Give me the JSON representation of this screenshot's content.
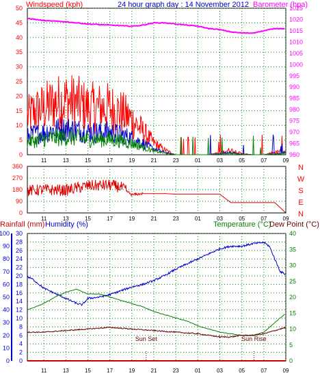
{
  "header": {
    "title": "24 hour graph day : 14 November 2012",
    "windspeed_label": "Windspeed (kph)",
    "barometer_label": "Barometer (hpa)"
  },
  "bottom_header": {
    "rainfall_label": "Rainfall (mm)",
    "humidity_label": "Humidity (%)",
    "temperature_label": "Temperature (°C)",
    "dewpoint_label": "Dew Point (°C)"
  },
  "colors": {
    "windspeed": "#ff0000",
    "wind_avg": "#0000cc",
    "wind_low": "#008000",
    "barometer": "#ff00ff",
    "direction": "#dd0000",
    "humidity": "#0000cc",
    "temperature": "#008000",
    "dewpoint": "#660000",
    "rain": "#cc0000",
    "grid": "#008000",
    "axis_left": "#0000cc",
    "axis_right": "#008000"
  },
  "chart_data": [
    {
      "type": "line",
      "title": "24 hour graph day : 14 November 2012",
      "x_ticks": [
        "11",
        "13",
        "15",
        "17",
        "19",
        "21",
        "23",
        "01",
        "03",
        "05",
        "07",
        "09"
      ],
      "y_left": {
        "label": "Windspeed (kph)",
        "ticks": [
          0,
          5,
          10,
          15,
          20,
          25,
          30,
          35,
          40,
          45,
          50
        ],
        "ylim": [
          0,
          50
        ]
      },
      "y_right": {
        "label": "Barometer (hpa)",
        "ticks": [
          960,
          965,
          970,
          975,
          980,
          985,
          990,
          995,
          1000,
          1005,
          1010,
          1015,
          1020,
          1025
        ],
        "ylim": [
          960,
          1025
        ]
      },
      "series": [
        {
          "name": "Windspeed (kph)",
          "axis": "left",
          "points": [
            [
              9.5,
              16
            ],
            [
              10,
              18
            ],
            [
              11,
              20
            ],
            [
              12,
              22
            ],
            [
              13,
              23
            ],
            [
              14,
              22
            ],
            [
              15,
              20
            ],
            [
              16,
              20
            ],
            [
              17,
              20
            ],
            [
              18,
              18
            ],
            [
              19,
              15
            ],
            [
              20,
              10
            ],
            [
              21,
              5
            ],
            [
              22,
              2
            ],
            [
              23,
              0
            ],
            [
              24,
              0
            ],
            [
              25,
              0
            ],
            [
              26,
              0
            ],
            [
              27,
              1
            ],
            [
              28,
              2
            ],
            [
              29,
              0.5
            ],
            [
              30,
              0
            ],
            [
              31,
              0
            ],
            [
              32,
              1
            ],
            [
              33,
              2
            ]
          ]
        },
        {
          "name": "Barometer (hpa)",
          "axis": "right",
          "points": [
            [
              9.5,
              1020.5
            ],
            [
              11,
              1019.5
            ],
            [
              13,
              1019
            ],
            [
              15,
              1018
            ],
            [
              17,
              1017.5
            ],
            [
              19,
              1017
            ],
            [
              20,
              1017.5
            ],
            [
              21,
              1018.5
            ],
            [
              22,
              1018.5
            ],
            [
              23,
              1018
            ],
            [
              24,
              1017.5
            ],
            [
              25,
              1017
            ],
            [
              26,
              1016
            ],
            [
              27,
              1015.5
            ],
            [
              28,
              1014.5
            ],
            [
              29,
              1014
            ],
            [
              30,
              1014
            ],
            [
              31,
              1015
            ],
            [
              32,
              1016
            ],
            [
              33,
              1016
            ]
          ]
        }
      ]
    },
    {
      "type": "line",
      "y_left": {
        "ticks": [
          0,
          90,
          180,
          270,
          360
        ],
        "ylim": [
          0,
          360
        ]
      },
      "y_right": {
        "ticks": [
          "N",
          "W",
          "S",
          "E",
          "N"
        ]
      },
      "x_ticks": [
        "11",
        "13",
        "15",
        "17",
        "19",
        "21",
        "23",
        "01",
        "03",
        "05",
        "07",
        "09"
      ],
      "series": [
        {
          "name": "Wind direction",
          "points": [
            [
              9.5,
              170
            ],
            [
              11,
              180
            ],
            [
              13,
              175
            ],
            [
              15,
              210
            ],
            [
              17,
              215
            ],
            [
              18,
              200
            ],
            [
              19,
              140
            ],
            [
              20,
              150
            ],
            [
              21,
              150
            ],
            [
              22,
              150
            ],
            [
              23,
              145
            ],
            [
              24,
              145
            ],
            [
              25,
              145
            ],
            [
              26,
              145
            ],
            [
              27,
              145
            ],
            [
              28,
              80
            ],
            [
              29,
              80
            ],
            [
              30,
              80
            ],
            [
              31,
              80
            ],
            [
              32,
              80
            ],
            [
              33,
              0
            ]
          ]
        }
      ]
    },
    {
      "type": "line",
      "x_ticks": [
        "11",
        "13",
        "15",
        "17",
        "19",
        "21",
        "23",
        "01",
        "03",
        "05",
        "07",
        "09"
      ],
      "y_left_outer": {
        "label": "Humidity (%)",
        "ticks": [
          0,
          10,
          20,
          30,
          40,
          50,
          60,
          70,
          80,
          90,
          100
        ],
        "ylim": [
          0,
          100
        ]
      },
      "y_left_inner": {
        "label": "Rainfall (mm)",
        "ticks": [
          0,
          2,
          4,
          6,
          8,
          10,
          12,
          14,
          16,
          18,
          20,
          22,
          24,
          26,
          28,
          30
        ],
        "ylim": [
          0,
          30
        ]
      },
      "y_right": {
        "label": "Temperature (°C) Dew Point (°C)",
        "ticks": [
          0,
          5,
          10,
          15,
          20,
          25,
          30,
          35,
          40
        ],
        "ylim": [
          0,
          40
        ]
      },
      "annotations": [
        {
          "text": "Sun Set",
          "x": 20.3
        },
        {
          "text": "Sun Rise",
          "x": 30.1
        }
      ],
      "series": [
        {
          "name": "Humidity (%)",
          "axis": "left_outer",
          "points": [
            [
              9.5,
              66
            ],
            [
              10,
              64
            ],
            [
              11,
              57
            ],
            [
              12,
              53
            ],
            [
              13,
              49
            ],
            [
              14,
              45
            ],
            [
              14.5,
              44
            ],
            [
              15,
              49
            ],
            [
              16,
              50
            ],
            [
              17,
              52
            ],
            [
              18,
              55
            ],
            [
              19,
              58
            ],
            [
              20,
              60
            ],
            [
              21,
              63
            ],
            [
              22,
              67
            ],
            [
              23,
              72
            ],
            [
              24,
              76
            ],
            [
              25,
              80
            ],
            [
              26,
              84
            ],
            [
              27,
              88
            ],
            [
              28,
              90
            ],
            [
              29,
              90
            ],
            [
              30,
              92
            ],
            [
              31,
              93
            ],
            [
              31.5,
              90
            ],
            [
              32,
              80
            ],
            [
              32.5,
              70
            ],
            [
              33,
              68
            ]
          ]
        },
        {
          "name": "Temperature (°C)",
          "axis": "right",
          "points": [
            [
              9.5,
              16
            ],
            [
              11,
              18
            ],
            [
              12,
              20
            ],
            [
              13,
              21.5
            ],
            [
              14,
              22.5
            ],
            [
              15,
              21
            ],
            [
              16,
              21
            ],
            [
              17,
              20
            ],
            [
              18,
              19
            ],
            [
              19,
              18
            ],
            [
              20,
              17
            ],
            [
              21,
              15.5
            ],
            [
              22,
              14.5
            ],
            [
              23,
              13.5
            ],
            [
              24,
              12.5
            ],
            [
              25,
              11
            ],
            [
              26,
              10
            ],
            [
              27,
              9
            ],
            [
              28,
              8.5
            ],
            [
              29,
              8
            ],
            [
              30,
              8
            ],
            [
              31,
              9
            ],
            [
              32,
              12
            ],
            [
              33,
              15
            ]
          ]
        },
        {
          "name": "Dew Point (°C)",
          "axis": "right",
          "points": [
            [
              9.5,
              9
            ],
            [
              11,
              9
            ],
            [
              13,
              9.5
            ],
            [
              15,
              10
            ],
            [
              17,
              10.5
            ],
            [
              19,
              10
            ],
            [
              21,
              9.5
            ],
            [
              23,
              9
            ],
            [
              25,
              8.5
            ],
            [
              26,
              8
            ],
            [
              27,
              7.5
            ],
            [
              28,
              7.5
            ],
            [
              29,
              8
            ],
            [
              30,
              8
            ],
            [
              31,
              8.5
            ],
            [
              32,
              9.5
            ],
            [
              33,
              10.5
            ]
          ]
        },
        {
          "name": "Rainfall (mm)",
          "axis": "left_inner",
          "points": [
            [
              9.5,
              0
            ],
            [
              33,
              0
            ]
          ]
        }
      ]
    }
  ]
}
